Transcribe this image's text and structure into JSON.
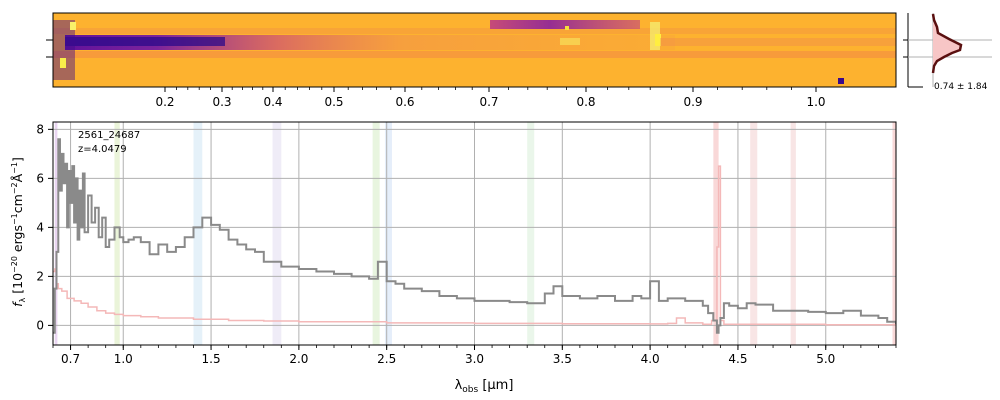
{
  "chart_data": [
    {
      "type": "heatmap",
      "panel": "2d-spectrum",
      "x_axis": "rest-frame wavelength (um), scale compressed toward long wavelengths",
      "tick_labels": [
        "0.2",
        "0.3",
        "0.4",
        "0.5",
        "0.6",
        "0.7",
        "0.8",
        "0.9",
        "1.0"
      ],
      "tick_values": [
        0.2,
        0.3,
        0.4,
        0.5,
        0.6,
        0.7,
        0.8,
        0.9,
        1.0
      ],
      "colormap": "plasma",
      "background_color": "#fdb22f"
    },
    {
      "type": "line",
      "panel": "spatial-profile",
      "annotation": "0.74 ± 1.84",
      "fill_color": "#f7c6c6",
      "line_color": "#5a1010"
    },
    {
      "type": "line",
      "panel": "1d-spectrum",
      "id_label": "2561_24687",
      "redshift_label": "z=4.0479",
      "xlabel_prefix": "λ",
      "xlabel_sub": "obs",
      "xlabel_suffix": " [μm]",
      "ylabel": "f_λ [10^-20 ergs^-1 cm^-2 Å^-1]",
      "ylabel_main": "f",
      "ylabel_sub": "λ",
      "ylabel_unit_a": " [10",
      "ylabel_exp_a": "−20",
      "ylabel_unit_b": " ergs",
      "ylabel_exp_b": "−1",
      "ylabel_unit_c": "cm",
      "ylabel_exp_c": "−2",
      "ylabel_unit_d": "Å",
      "ylabel_exp_d": "−1",
      "ylabel_unit_e": "]",
      "xlim": [
        0.6,
        5.4
      ],
      "ylim": [
        -0.8,
        8.3
      ],
      "x_tick_labels": [
        "0.7",
        "1.0",
        "1.5",
        "2.0",
        "2.5",
        "3.0",
        "3.5",
        "4.0",
        "4.5",
        "5.0"
      ],
      "x_tick_values": [
        0.7,
        1.0,
        1.5,
        2.0,
        2.5,
        3.0,
        3.5,
        4.0,
        4.5,
        5.0
      ],
      "y_tick_labels": [
        "0",
        "2",
        "4",
        "6",
        "8"
      ],
      "y_tick_values": [
        0,
        2,
        4,
        6,
        8
      ],
      "grid": true,
      "series": [
        {
          "role": "flux",
          "color": "#8a8a8a",
          "x": [
            0.6,
            0.61,
            0.62,
            0.63,
            0.64,
            0.65,
            0.66,
            0.67,
            0.68,
            0.69,
            0.7,
            0.71,
            0.72,
            0.73,
            0.74,
            0.75,
            0.76,
            0.77,
            0.78,
            0.8,
            0.82,
            0.84,
            0.86,
            0.88,
            0.9,
            0.92,
            0.95,
            0.98,
            1.0,
            1.03,
            1.06,
            1.1,
            1.15,
            1.2,
            1.25,
            1.3,
            1.35,
            1.4,
            1.45,
            1.5,
            1.55,
            1.6,
            1.65,
            1.7,
            1.75,
            1.8,
            1.9,
            2.0,
            2.1,
            2.2,
            2.3,
            2.4,
            2.45,
            2.5,
            2.55,
            2.6,
            2.7,
            2.8,
            2.9,
            3.0,
            3.1,
            3.2,
            3.3,
            3.4,
            3.45,
            3.5,
            3.55,
            3.6,
            3.7,
            3.8,
            3.9,
            3.95,
            4.0,
            4.05,
            4.1,
            4.2,
            4.3,
            4.33,
            4.36,
            4.38,
            4.39,
            4.4,
            4.42,
            4.45,
            4.5,
            4.55,
            4.6,
            4.7,
            4.8,
            4.9,
            5.0,
            5.1,
            5.2,
            5.3,
            5.35,
            5.4
          ],
          "y": [
            -0.3,
            1.5,
            3.0,
            7.6,
            5.5,
            7.0,
            5.8,
            6.6,
            4.0,
            6.3,
            5.0,
            6.5,
            4.2,
            6.0,
            3.5,
            5.5,
            4.0,
            6.2,
            3.8,
            5.3,
            4.2,
            4.8,
            3.6,
            4.4,
            3.2,
            3.5,
            4.0,
            3.6,
            3.4,
            3.5,
            3.6,
            3.4,
            2.9,
            3.3,
            3.0,
            3.2,
            3.6,
            4.0,
            4.4,
            4.1,
            3.9,
            3.5,
            3.3,
            3.1,
            3.0,
            2.6,
            2.4,
            2.3,
            2.2,
            2.1,
            2.0,
            1.9,
            2.6,
            1.8,
            1.7,
            1.5,
            1.4,
            1.2,
            1.1,
            1.0,
            1.0,
            0.95,
            0.9,
            1.3,
            1.6,
            1.2,
            1.2,
            1.1,
            1.2,
            1.0,
            1.2,
            1.1,
            1.8,
            1.0,
            1.1,
            1.0,
            0.8,
            0.5,
            0.2,
            -0.3,
            0.0,
            0.3,
            0.9,
            0.8,
            0.7,
            0.9,
            0.85,
            0.6,
            0.6,
            0.55,
            0.5,
            0.6,
            0.4,
            0.3,
            0.15,
            0.05
          ]
        },
        {
          "role": "error",
          "color": "#f4b8b8",
          "x": [
            0.6,
            0.61,
            0.62,
            0.63,
            0.65,
            0.68,
            0.72,
            0.76,
            0.8,
            0.85,
            0.9,
            0.95,
            1.0,
            1.1,
            1.2,
            1.4,
            1.6,
            1.8,
            2.0,
            2.5,
            3.0,
            3.5,
            4.0,
            4.1,
            4.15,
            4.2,
            4.3,
            4.35,
            4.38,
            4.39,
            4.4,
            4.42,
            4.5,
            5.0,
            5.4
          ],
          "y": [
            2.2,
            2.3,
            1.7,
            1.5,
            1.4,
            1.1,
            1.0,
            0.9,
            0.75,
            0.6,
            0.5,
            0.45,
            0.4,
            0.35,
            0.3,
            0.25,
            0.2,
            0.18,
            0.15,
            0.1,
            0.08,
            0.07,
            0.06,
            0.08,
            0.3,
            0.1,
            0.05,
            0.2,
            3.2,
            6.5,
            0.2,
            0.05,
            0.05,
            0.03,
            0.02
          ]
        }
      ],
      "shaded_bands": [
        {
          "x0": 0.61,
          "x1": 0.625,
          "color": "#d8b4e8"
        },
        {
          "x0": 0.95,
          "x1": 0.98,
          "color": "#d9ebb9"
        },
        {
          "x0": 1.4,
          "x1": 1.45,
          "color": "#cfe6f4"
        },
        {
          "x0": 1.85,
          "x1": 1.9,
          "color": "#e2dcf0"
        },
        {
          "x0": 2.42,
          "x1": 2.46,
          "color": "#d6ecc4"
        },
        {
          "x0": 2.49,
          "x1": 2.53,
          "color": "#cfe0f6"
        },
        {
          "x0": 3.3,
          "x1": 3.34,
          "color": "#d8efd8"
        },
        {
          "x0": 4.36,
          "x1": 4.39,
          "color": "#f4b8b8"
        },
        {
          "x0": 4.57,
          "x1": 4.61,
          "color": "#f2d0d0"
        },
        {
          "x0": 4.8,
          "x1": 4.83,
          "color": "#f2d0d0"
        },
        {
          "x0": 5.38,
          "x1": 5.4,
          "color": "#f4b8b8"
        }
      ]
    }
  ]
}
